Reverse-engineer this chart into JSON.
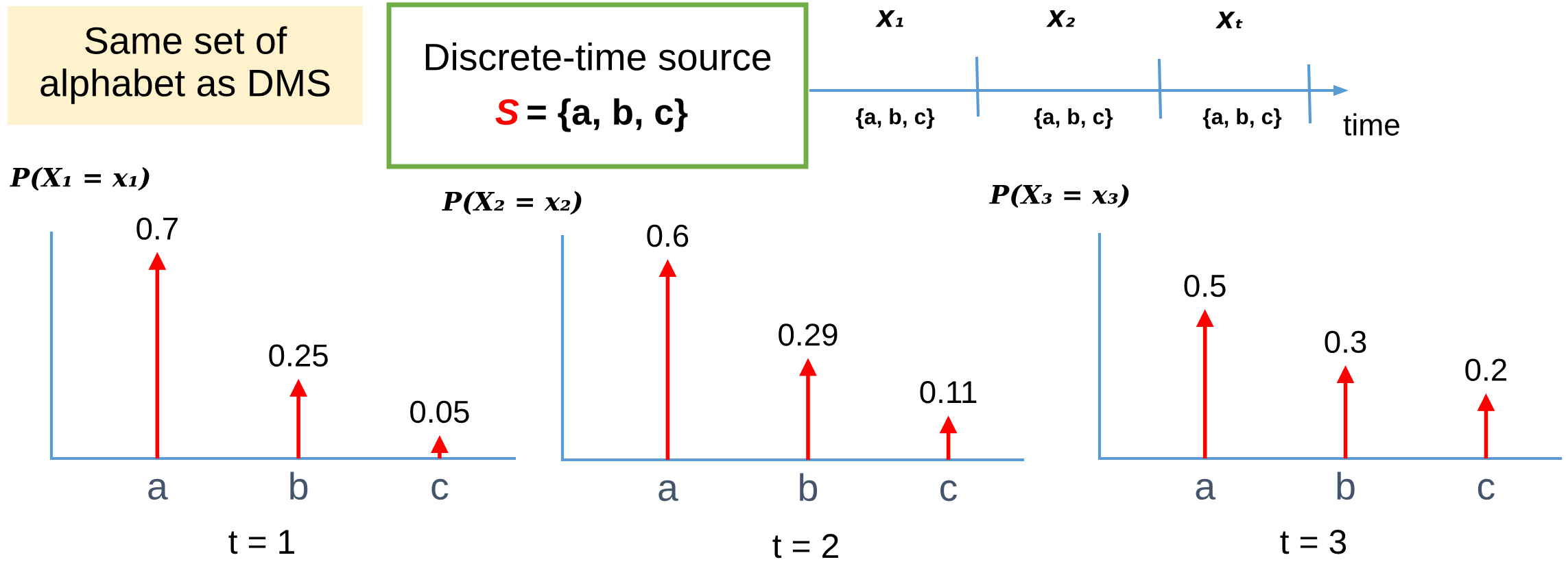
{
  "chart_data": [
    {
      "type": "other",
      "annotations": [
        "Same set of\nalphabet as DMS",
        "Discrete-time source",
        "S",
        "= {a, b, c}",
        "X₁",
        "X₂",
        "Xₜ",
        "{a, b, c}",
        "{a, b, c}",
        "{a, b, c}",
        "time"
      ]
    },
    {
      "type": "lollipop",
      "ylabel": "P(X₁ = x₁)",
      "xlabel": "t = 1",
      "categories": [
        "a",
        "b",
        "c"
      ],
      "values": [
        0.7,
        0.25,
        0.05
      ],
      "color": "#ff0000",
      "data_labels": true,
      "marker": "triangle",
      "ylim": [
        0,
        0.8
      ],
      "tick_labels": "x"
    },
    {
      "type": "lollipop",
      "ylabel": "P(X₂ = x₂)",
      "xlabel": "t = 2",
      "categories": [
        "a",
        "b",
        "c"
      ],
      "values": [
        0.6,
        0.29,
        0.11
      ],
      "color": "#ff0000",
      "data_labels": true,
      "marker": "triangle",
      "ylim": [
        0,
        0.7
      ],
      "tick_labels": "x"
    },
    {
      "type": "lollipop",
      "ylabel": "P(X₃ = x₃)",
      "xlabel": "t = 3",
      "categories": [
        "a",
        "b",
        "c"
      ],
      "values": [
        0.5,
        0.3,
        0.2
      ],
      "color": "#ff0000",
      "data_labels": true,
      "marker": "triangle",
      "ylim": [
        0,
        0.8
      ],
      "tick_labels": "x"
    }
  ]
}
